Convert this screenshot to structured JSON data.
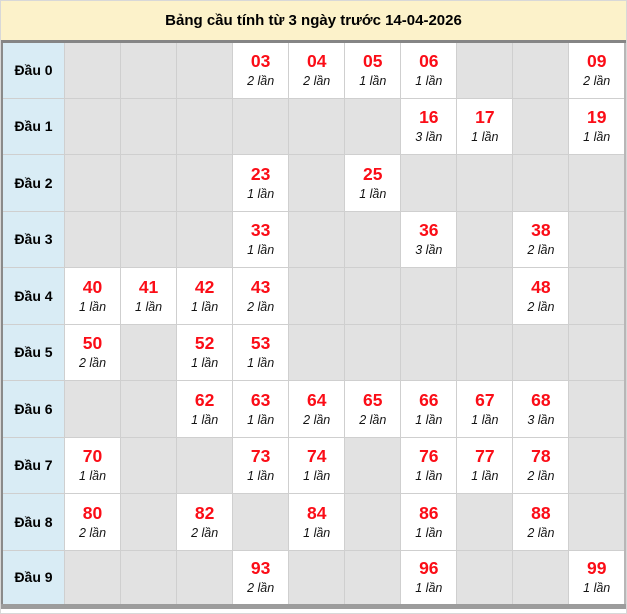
{
  "title": "Bảng cầu tính từ 3 ngày trước 14-04-2026",
  "colors": {
    "title_bg": "#fcf2ca",
    "row_header_bg": "#d9ecf5",
    "empty_cell_bg": "#e2e2e2",
    "filled_cell_bg": "#ffffff",
    "number_color": "#fb0d17",
    "count_color": "#141414",
    "cell_border": "#cfcfcf",
    "table_border": "#8a8a8a"
  },
  "rows": [
    {
      "label": "Đầu 0",
      "cells": [
        null,
        null,
        null,
        {
          "number": "03",
          "count": "2 lần"
        },
        {
          "number": "04",
          "count": "2 lần"
        },
        {
          "number": "05",
          "count": "1 lần"
        },
        {
          "number": "06",
          "count": "1 lần"
        },
        null,
        null,
        {
          "number": "09",
          "count": "2 lần"
        }
      ]
    },
    {
      "label": "Đầu 1",
      "cells": [
        null,
        null,
        null,
        null,
        null,
        null,
        {
          "number": "16",
          "count": "3 lần"
        },
        {
          "number": "17",
          "count": "1 lần"
        },
        null,
        {
          "number": "19",
          "count": "1 lần"
        }
      ]
    },
    {
      "label": "Đầu 2",
      "cells": [
        null,
        null,
        null,
        {
          "number": "23",
          "count": "1 lần"
        },
        null,
        {
          "number": "25",
          "count": "1 lần"
        },
        null,
        null,
        null,
        null
      ]
    },
    {
      "label": "Đầu 3",
      "cells": [
        null,
        null,
        null,
        {
          "number": "33",
          "count": "1 lần"
        },
        null,
        null,
        {
          "number": "36",
          "count": "3 lần"
        },
        null,
        {
          "number": "38",
          "count": "2 lần"
        },
        null
      ]
    },
    {
      "label": "Đầu 4",
      "cells": [
        {
          "number": "40",
          "count": "1 lần"
        },
        {
          "number": "41",
          "count": "1 lần"
        },
        {
          "number": "42",
          "count": "1 lần"
        },
        {
          "number": "43",
          "count": "2 lần"
        },
        null,
        null,
        null,
        null,
        {
          "number": "48",
          "count": "2 lần"
        },
        null
      ]
    },
    {
      "label": "Đầu 5",
      "cells": [
        {
          "number": "50",
          "count": "2 lần"
        },
        null,
        {
          "number": "52",
          "count": "1 lần"
        },
        {
          "number": "53",
          "count": "1 lần"
        },
        null,
        null,
        null,
        null,
        null,
        null
      ]
    },
    {
      "label": "Đầu 6",
      "cells": [
        null,
        null,
        {
          "number": "62",
          "count": "1 lần"
        },
        {
          "number": "63",
          "count": "1 lần"
        },
        {
          "number": "64",
          "count": "2 lần"
        },
        {
          "number": "65",
          "count": "2 lần"
        },
        {
          "number": "66",
          "count": "1 lần"
        },
        {
          "number": "67",
          "count": "1 lần"
        },
        {
          "number": "68",
          "count": "3 lần"
        },
        null
      ]
    },
    {
      "label": "Đầu 7",
      "cells": [
        {
          "number": "70",
          "count": "1 lần"
        },
        null,
        null,
        {
          "number": "73",
          "count": "1 lần"
        },
        {
          "number": "74",
          "count": "1 lần"
        },
        null,
        {
          "number": "76",
          "count": "1 lần"
        },
        {
          "number": "77",
          "count": "1 lần"
        },
        {
          "number": "78",
          "count": "2 lần"
        },
        null
      ]
    },
    {
      "label": "Đầu 8",
      "cells": [
        {
          "number": "80",
          "count": "2 lần"
        },
        null,
        {
          "number": "82",
          "count": "2 lần"
        },
        null,
        {
          "number": "84",
          "count": "1 lần"
        },
        null,
        {
          "number": "86",
          "count": "1 lần"
        },
        null,
        {
          "number": "88",
          "count": "2 lần"
        },
        null
      ]
    },
    {
      "label": "Đầu 9",
      "cells": [
        null,
        null,
        null,
        {
          "number": "93",
          "count": "2 lần"
        },
        null,
        null,
        {
          "number": "96",
          "count": "1 lần"
        },
        null,
        null,
        {
          "number": "99",
          "count": "1 lần"
        }
      ]
    }
  ]
}
